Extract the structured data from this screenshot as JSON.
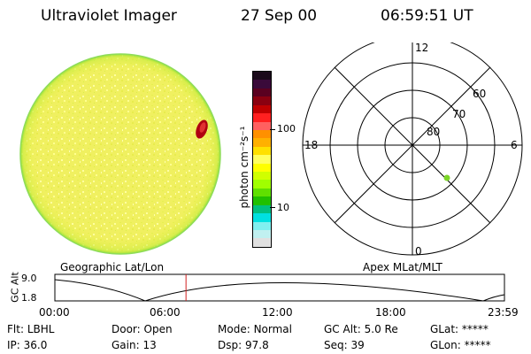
{
  "header": {
    "title": "Ultraviolet Imager",
    "date": "27 Sep 00",
    "time": "06:59:51 UT"
  },
  "colorbar": {
    "unit_label": "photon cm⁻²s⁻¹",
    "ticks": [
      "100",
      "10"
    ],
    "colors": [
      "#1a0a1a",
      "#3a0a3a",
      "#5a0020",
      "#8a0010",
      "#c00000",
      "#ff2020",
      "#ff6060",
      "#ff9000",
      "#ffb000",
      "#ffe000",
      "#ffff60",
      "#ffff00",
      "#d0ff00",
      "#a0ff00",
      "#60e000",
      "#20c000",
      "#00c080",
      "#00e0e0",
      "#80f0f0",
      "#c0f0f0",
      "#e0e0e0"
    ]
  },
  "polar": {
    "mlt_labels": [
      "12",
      "18",
      "6",
      "0"
    ],
    "lat_labels": [
      "60",
      "70",
      "80"
    ],
    "marker_color": "#7cd628"
  },
  "timeline": {
    "left_title": "Geographic Lat/Lon",
    "right_title": "Apex  MLat/MLT",
    "axis_label": "GC Alt",
    "y_top": "9.0",
    "y_bottom": "1.8",
    "x_ticks": [
      "00:00",
      "06:00",
      "12:00",
      "18:00",
      "23:59"
    ],
    "current_time_hours": 7.0,
    "marker_color": "#d02020"
  },
  "status": {
    "flt_label": "Flt:",
    "flt_value": "LBHL",
    "ip_label": "IP:",
    "ip_value": "36.0",
    "door_label": "Door:",
    "door_value": "Open",
    "gain_label": "Gain:",
    "gain_value": "13",
    "mode_label": "Mode:",
    "mode_value": "Normal",
    "dsp_label": "Dsp:",
    "dsp_value": "97.8",
    "gcalt_label": "GC Alt:",
    "gcalt_value": "5.0 Re",
    "seq_label": "Seq:",
    "seq_value": "39",
    "glat_label": "GLat:",
    "glat_value": "*****",
    "glon_label": "GLon:",
    "glon_value": "*****"
  }
}
